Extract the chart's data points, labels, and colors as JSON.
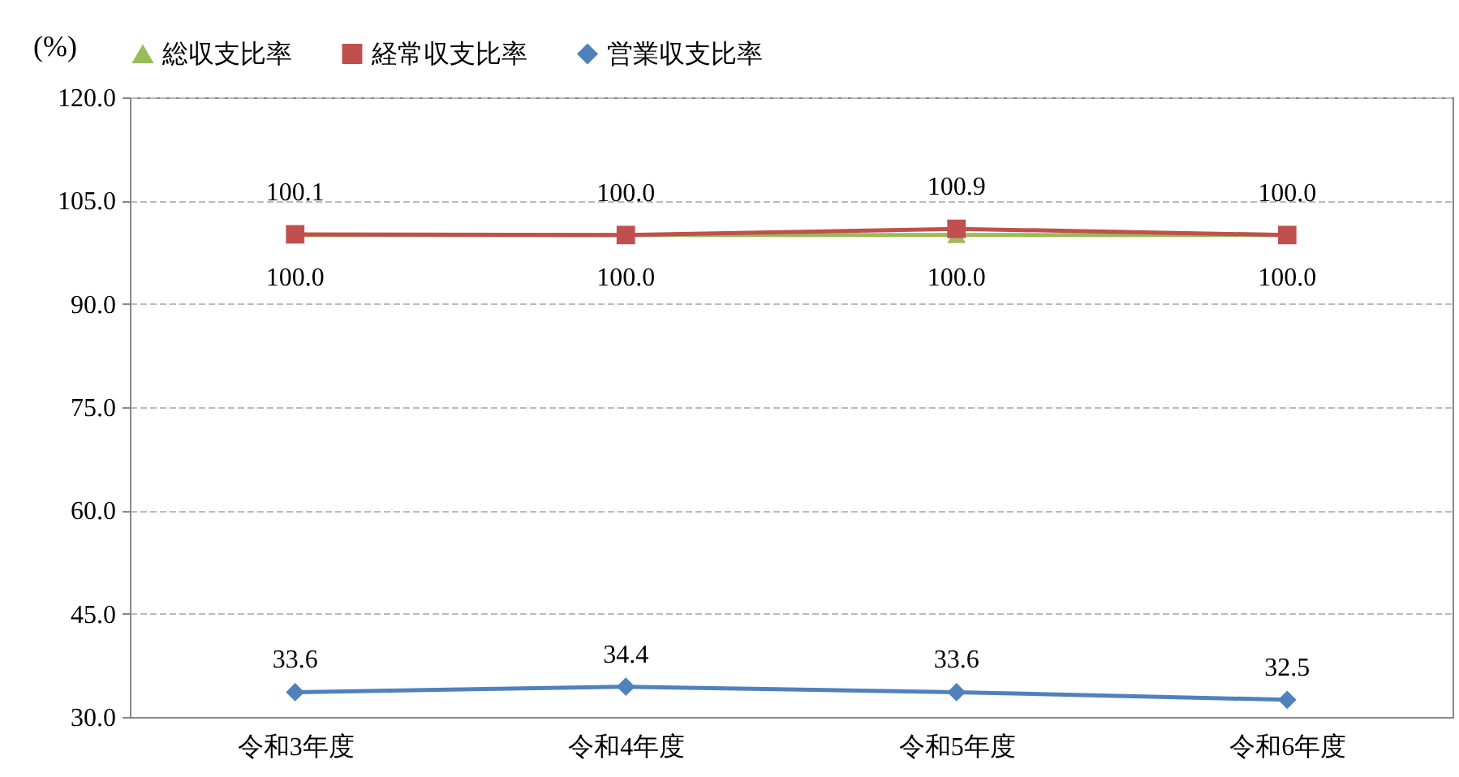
{
  "chart_data": {
    "type": "line",
    "ylabel": "(%)",
    "categories": [
      "令和3年度",
      "令和4年度",
      "令和5年度",
      "令和6年度"
    ],
    "series": [
      {
        "name": "総収支比率",
        "color": "#9bbb59",
        "marker": "triangle",
        "values": [
          100.0,
          100.0,
          100.0,
          100.0
        ],
        "value_labels": [
          "100.0",
          "100.0",
          "100.0",
          "100.0"
        ]
      },
      {
        "name": "経常収支比率",
        "color": "#c0504d",
        "marker": "square",
        "values": [
          100.1,
          100.0,
          100.9,
          100.0
        ],
        "value_labels": [
          "100.1",
          "100.0",
          "100.9",
          "100.0"
        ]
      },
      {
        "name": "営業収支比率",
        "color": "#4f81bd",
        "marker": "diamond",
        "values": [
          33.6,
          34.4,
          33.6,
          32.5
        ],
        "value_labels": [
          "33.6",
          "34.4",
          "33.6",
          "32.5"
        ]
      }
    ],
    "ylim": [
      30,
      120
    ],
    "yticks": [
      {
        "value": 30,
        "label": "30.0"
      },
      {
        "value": 45,
        "label": "45.0"
      },
      {
        "value": 60,
        "label": "60.0"
      },
      {
        "value": 75,
        "label": "75.0"
      },
      {
        "value": 90,
        "label": "90.0"
      },
      {
        "value": 105,
        "label": "105.0"
      },
      {
        "value": 120,
        "label": "120.0"
      }
    ],
    "grid": "y",
    "legend": "top"
  }
}
